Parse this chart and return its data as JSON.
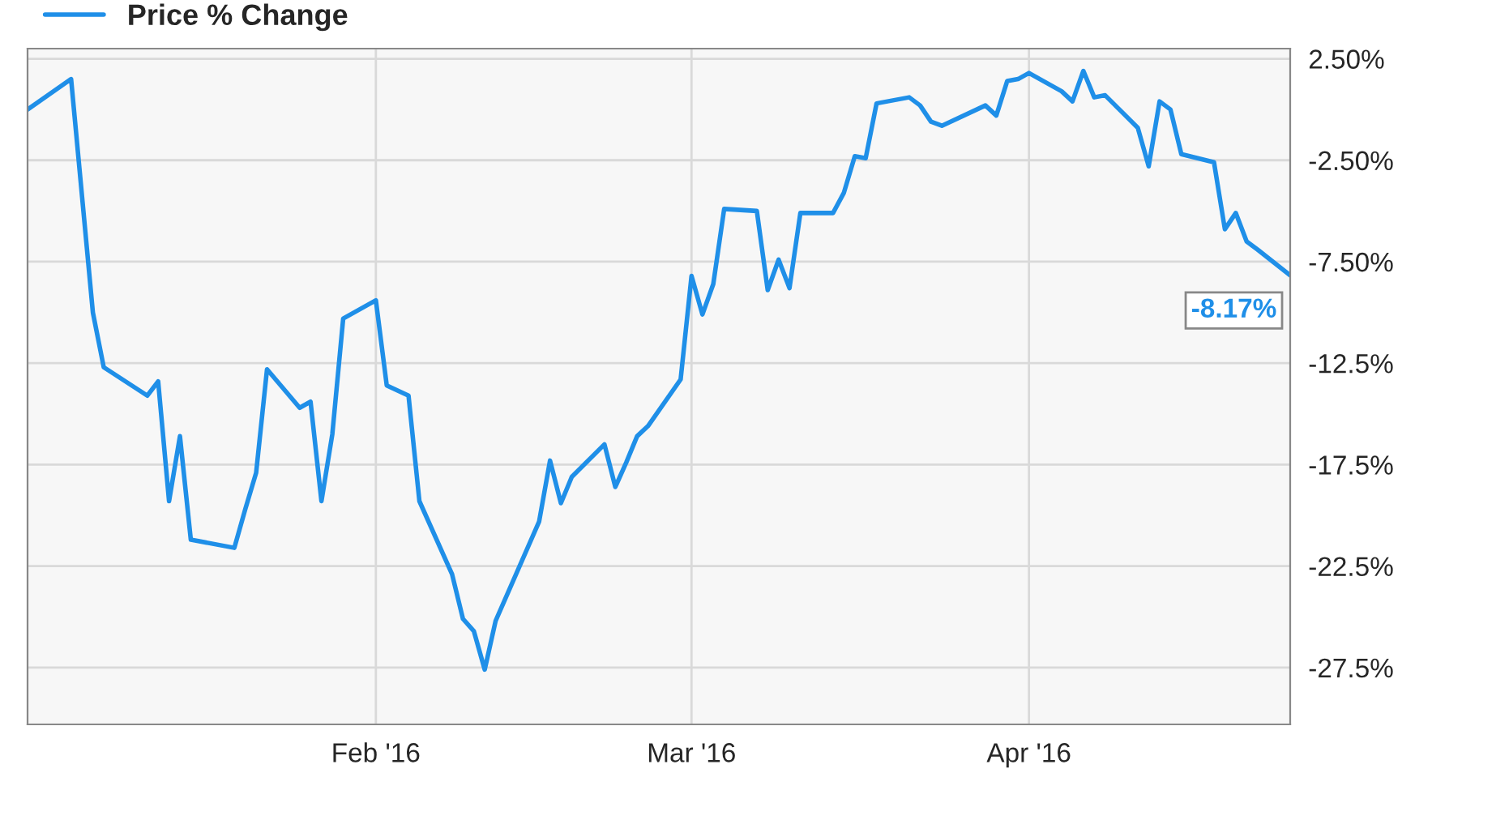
{
  "chart_data": {
    "type": "line",
    "x": [
      "2015-12-31",
      "2016-01-04",
      "2016-01-06",
      "2016-01-07",
      "2016-01-11",
      "2016-01-12",
      "2016-01-13",
      "2016-01-14",
      "2016-01-15",
      "2016-01-19",
      "2016-01-20",
      "2016-01-21",
      "2016-01-22",
      "2016-01-25",
      "2016-01-26",
      "2016-01-27",
      "2016-01-28",
      "2016-01-29",
      "2016-02-01",
      "2016-02-02",
      "2016-02-04",
      "2016-02-05",
      "2016-02-08",
      "2016-02-09",
      "2016-02-10",
      "2016-02-11",
      "2016-02-12",
      "2016-02-16",
      "2016-02-17",
      "2016-02-18",
      "2016-02-19",
      "2016-02-22",
      "2016-02-23",
      "2016-02-24",
      "2016-02-25",
      "2016-02-26",
      "2016-02-29",
      "2016-03-01",
      "2016-03-02",
      "2016-03-03",
      "2016-03-04",
      "2016-03-07",
      "2016-03-08",
      "2016-03-09",
      "2016-03-10",
      "2016-03-11",
      "2016-03-14",
      "2016-03-15",
      "2016-03-16",
      "2016-03-17",
      "2016-03-18",
      "2016-03-21",
      "2016-03-22",
      "2016-03-23",
      "2016-03-24",
      "2016-03-28",
      "2016-03-29",
      "2016-03-30",
      "2016-03-31",
      "2016-04-01",
      "2016-04-04",
      "2016-04-05",
      "2016-04-06",
      "2016-04-07",
      "2016-04-08",
      "2016-04-11",
      "2016-04-12",
      "2016-04-13",
      "2016-04-14",
      "2016-04-15",
      "2016-04-18",
      "2016-04-19",
      "2016-04-20",
      "2016-04-21",
      "2016-04-22",
      "2016-04-25"
    ],
    "series": [
      {
        "name": "Price % Change",
        "color": "#1f8fe8",
        "values": [
          0.0,
          1.5,
          -10.0,
          -12.7,
          -14.1,
          -13.4,
          -19.3,
          -16.1,
          -21.2,
          -21.6,
          -19.7,
          -17.9,
          -12.8,
          -14.7,
          -14.4,
          -19.3,
          -16.0,
          -10.3,
          -9.4,
          -13.6,
          -14.1,
          -19.3,
          -22.9,
          -25.1,
          -25.7,
          -27.6,
          -25.2,
          -20.3,
          -17.3,
          -19.4,
          -18.1,
          -16.5,
          -18.6,
          -17.4,
          -16.1,
          -15.6,
          -13.3,
          -8.2,
          -10.1,
          -8.6,
          -4.9,
          -5.0,
          -8.9,
          -7.4,
          -8.8,
          -5.1,
          -5.1,
          -4.1,
          -2.3,
          -2.4,
          0.3,
          0.6,
          0.2,
          -0.6,
          -0.8,
          0.2,
          -0.3,
          1.4,
          1.5,
          1.8,
          0.9,
          0.4,
          1.9,
          0.6,
          0.7,
          -0.9,
          -2.8,
          0.4,
          0.0,
          -2.2,
          -2.6,
          -5.9,
          -5.1,
          -6.5,
          -6.9,
          -8.17
        ],
        "value_labels": [
          null,
          null,
          null,
          null,
          null,
          null,
          null,
          null,
          null,
          null,
          null,
          null,
          null,
          null,
          null,
          null,
          null,
          null,
          null,
          null,
          null,
          null,
          null,
          null,
          null,
          null,
          null,
          null,
          null,
          null,
          null,
          null,
          null,
          null,
          null,
          null,
          null,
          null,
          null,
          null,
          null,
          null,
          null,
          null,
          null,
          null,
          null,
          null,
          null,
          null,
          null,
          null,
          null,
          null,
          null,
          null,
          null,
          null,
          null,
          null,
          null,
          null,
          null,
          null,
          null,
          null,
          null,
          null,
          null,
          null,
          null,
          null,
          null,
          null,
          null,
          "-8.17%"
        ]
      }
    ],
    "xlim": [
      "2015-12-31",
      "2016-04-25"
    ],
    "xticks": [
      {
        "value": "2016-02-01",
        "label": "Feb '16"
      },
      {
        "value": "2016-03-01",
        "label": "Mar '16"
      },
      {
        "value": "2016-04-01",
        "label": "Apr '16"
      }
    ],
    "ylim": [
      -30.3,
      3.0
    ],
    "yticks": [
      {
        "value": 2.5,
        "label": "2.50%"
      },
      {
        "value": -2.5,
        "label": "-2.50%"
      },
      {
        "value": -7.5,
        "label": "-7.50%"
      },
      {
        "value": -12.5,
        "label": "-12.5%"
      },
      {
        "value": -17.5,
        "label": "-17.5%"
      },
      {
        "value": -22.5,
        "label": "-22.5%"
      },
      {
        "value": -27.5,
        "label": "-27.5%"
      }
    ],
    "grid": true,
    "legend": "top left"
  }
}
